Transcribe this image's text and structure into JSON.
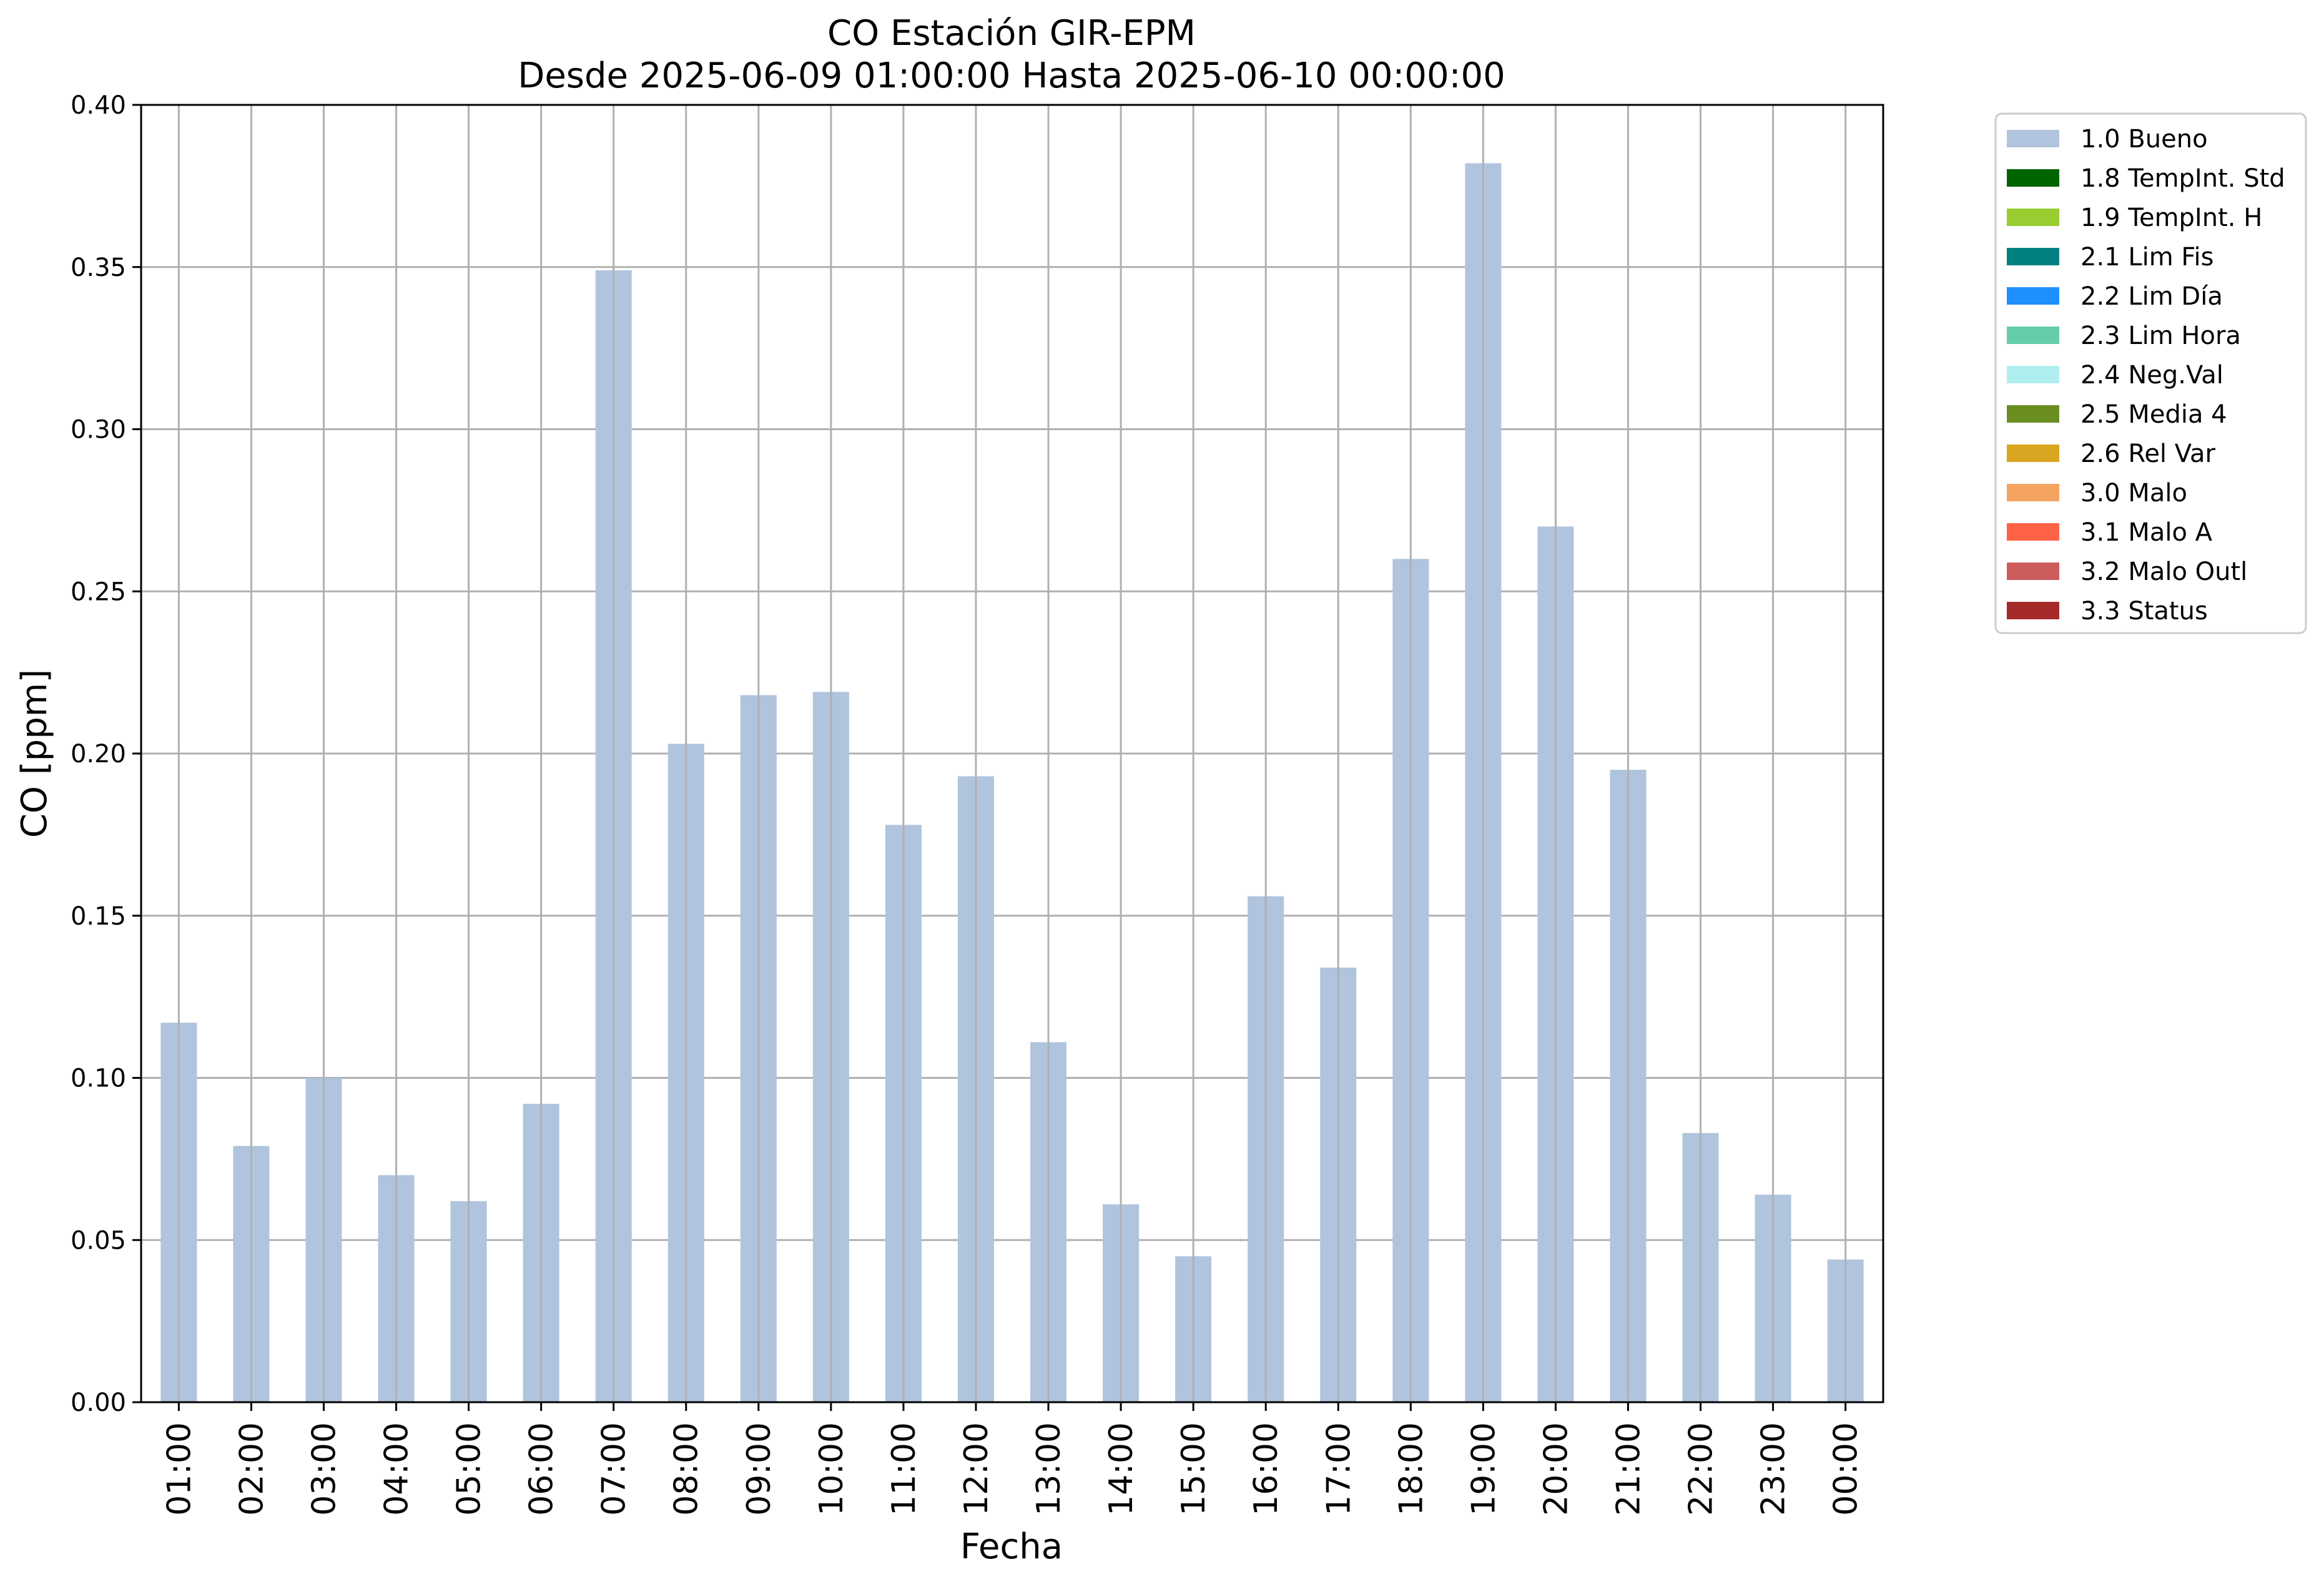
{
  "chart_data": {
    "type": "bar",
    "title": "CO Estación GIR-EPM",
    "subtitle": "Desde 2025-06-09 01:00:00 Hasta 2025-06-10 00:00:00",
    "xlabel": "Fecha",
    "ylabel": "CO [ppm]",
    "ylim": [
      0,
      0.4
    ],
    "yticks": [
      "0.00",
      "0.05",
      "0.10",
      "0.15",
      "0.20",
      "0.25",
      "0.30",
      "0.35",
      "0.40"
    ],
    "grid": true,
    "legend_position": "outside-top-right",
    "categories": [
      "01:00",
      "02:00",
      "03:00",
      "04:00",
      "05:00",
      "06:00",
      "07:00",
      "08:00",
      "09:00",
      "10:00",
      "11:00",
      "12:00",
      "13:00",
      "14:00",
      "15:00",
      "16:00",
      "17:00",
      "18:00",
      "19:00",
      "20:00",
      "21:00",
      "22:00",
      "23:00",
      "00:00"
    ],
    "series": [
      {
        "name": "1.0 Bueno",
        "color": "#b0c4de",
        "values": [
          0.117,
          0.079,
          0.1,
          0.07,
          0.062,
          0.092,
          0.349,
          0.203,
          0.218,
          0.219,
          0.178,
          0.193,
          0.111,
          0.061,
          0.045,
          0.156,
          0.134,
          0.26,
          0.382,
          0.27,
          0.195,
          0.083,
          0.064,
          0.044
        ]
      }
    ],
    "legend": [
      {
        "label": "1.0 Bueno",
        "color": "#b0c4de"
      },
      {
        "label": "1.8 TempInt. Std",
        "color": "#006400"
      },
      {
        "label": "1.9 TempInt. H",
        "color": "#9acd32"
      },
      {
        "label": "2.1 Lim Fis",
        "color": "#008080"
      },
      {
        "label": "2.2 Lim Día",
        "color": "#1e90ff"
      },
      {
        "label": "2.3 Lim Hora",
        "color": "#66cdaa"
      },
      {
        "label": "2.4 Neg.Val",
        "color": "#afeeee"
      },
      {
        "label": "2.5 Media 4",
        "color": "#6b8e23"
      },
      {
        "label": "2.6 Rel Var",
        "color": "#daa520"
      },
      {
        "label": "3.0 Malo",
        "color": "#f4a460"
      },
      {
        "label": "3.1 Malo A",
        "color": "#ff6347"
      },
      {
        "label": "3.2 Malo Outl",
        "color": "#cd5c5c"
      },
      {
        "label": "3.3 Status",
        "color": "#a52a2a"
      }
    ]
  }
}
